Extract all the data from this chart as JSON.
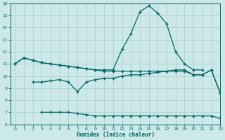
{
  "bg_color": "#cce8e8",
  "grid_color": "#b0d4d4",
  "line_color": "#006666",
  "xlabel": "Humidex (Indice chaleur)",
  "xlim": [
    -0.5,
    23
  ],
  "ylim": [
    6,
    16
  ],
  "yticks": [
    6,
    7,
    8,
    9,
    10,
    11,
    12,
    13,
    14,
    15,
    16
  ],
  "line1_x": [
    0,
    1,
    2,
    3,
    4,
    5,
    6,
    7,
    8,
    9,
    10,
    11,
    12,
    13,
    14,
    15,
    16,
    17,
    18,
    19,
    20,
    21
  ],
  "line1_y": [
    11.0,
    11.5,
    11.3,
    11.1,
    11.0,
    10.9,
    10.8,
    10.7,
    10.6,
    10.5,
    10.5,
    10.5,
    12.2,
    13.5,
    15.3,
    15.8,
    15.2,
    14.3,
    12.0,
    11.0,
    10.5,
    10.5
  ],
  "line2_x": [
    0,
    1,
    2,
    3,
    4,
    5,
    6,
    7,
    8,
    9,
    10,
    11,
    12,
    13,
    14,
    15,
    16,
    17,
    18,
    19,
    20,
    21,
    22,
    23
  ],
  "line2_y": [
    11.0,
    11.5,
    11.3,
    11.1,
    11.0,
    10.9,
    10.8,
    10.7,
    10.6,
    10.5,
    10.4,
    10.4,
    10.4,
    10.4,
    10.4,
    10.4,
    10.4,
    10.4,
    10.4,
    10.4,
    10.1,
    10.1,
    10.5,
    8.6
  ],
  "line3_x": [
    2,
    3,
    4,
    5,
    6,
    7,
    8,
    9,
    10,
    11,
    12,
    13,
    14,
    15,
    16,
    17,
    18,
    19,
    20,
    21,
    22,
    23
  ],
  "line3_y": [
    9.5,
    9.5,
    9.6,
    9.7,
    9.5,
    8.7,
    9.5,
    9.7,
    9.8,
    9.8,
    10.0,
    10.1,
    10.1,
    10.2,
    10.3,
    10.4,
    10.5,
    10.5,
    10.1,
    10.1,
    10.5,
    8.6
  ],
  "line4_x": [
    3,
    4,
    5,
    6,
    7,
    8,
    9,
    10,
    11,
    12,
    13,
    14,
    15,
    16,
    17,
    18,
    19,
    20,
    21,
    22,
    23
  ],
  "line4_y": [
    7.0,
    7.0,
    7.0,
    7.0,
    6.9,
    6.8,
    6.7,
    6.7,
    6.7,
    6.7,
    6.7,
    6.7,
    6.7,
    6.7,
    6.7,
    6.7,
    6.7,
    6.7,
    6.7,
    6.7,
    6.5
  ]
}
